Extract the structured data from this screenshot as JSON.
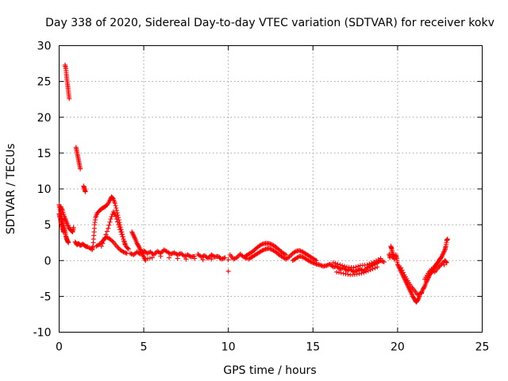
{
  "chart_data": {
    "type": "scatter",
    "title": "Day 338 of 2020, Sidereal Day-to-day VTEC variation (SDTVAR) for receiver kokv",
    "xlabel": "GPS time / hours",
    "ylabel": "SDTVAR / TECUs",
    "xlim": [
      0,
      25
    ],
    "ylim": [
      -10,
      30
    ],
    "xticks": [
      0,
      5,
      10,
      15,
      20,
      25
    ],
    "yticks": [
      -10,
      -5,
      0,
      5,
      10,
      15,
      20,
      25,
      30
    ],
    "grid": true,
    "marker": "+",
    "color": "#ff0000",
    "series": [
      {
        "name": "SDTVAR",
        "points": [
          [
            0.0,
            7.8
          ],
          [
            0.05,
            7.2
          ],
          [
            0.1,
            6.6
          ],
          [
            0.15,
            6.0
          ],
          [
            0.2,
            5.5
          ],
          [
            0.25,
            5.0
          ],
          [
            0.3,
            4.5
          ],
          [
            0.35,
            4.0
          ],
          [
            0.4,
            3.4
          ],
          [
            0.45,
            3.0
          ],
          [
            0.5,
            2.7
          ],
          [
            0.55,
            2.5
          ],
          [
            0.0,
            6.5
          ],
          [
            0.05,
            6.0
          ],
          [
            0.1,
            5.4
          ],
          [
            0.15,
            4.9
          ],
          [
            0.2,
            4.4
          ],
          [
            0.25,
            4.0
          ],
          [
            0.1,
            7.5
          ],
          [
            0.2,
            7.0
          ],
          [
            0.3,
            6.2
          ],
          [
            0.4,
            5.6
          ],
          [
            0.5,
            5.0
          ],
          [
            0.6,
            4.5
          ],
          [
            0.7,
            4.2
          ],
          [
            0.8,
            4.0
          ],
          [
            0.85,
            4.6
          ],
          [
            0.35,
            27.3
          ],
          [
            0.4,
            26.8
          ],
          [
            0.43,
            26.0
          ],
          [
            0.46,
            25.3
          ],
          [
            0.5,
            24.6
          ],
          [
            0.53,
            24.0
          ],
          [
            0.56,
            23.3
          ],
          [
            0.6,
            22.6
          ],
          [
            1.0,
            15.8
          ],
          [
            1.05,
            15.2
          ],
          [
            1.1,
            14.6
          ],
          [
            1.15,
            14.0
          ],
          [
            1.2,
            13.4
          ],
          [
            1.25,
            12.8
          ],
          [
            1.45,
            10.4
          ],
          [
            1.5,
            10.0
          ],
          [
            1.55,
            9.6
          ],
          [
            0.95,
            2.6
          ],
          [
            1.05,
            2.2
          ],
          [
            1.15,
            2.4
          ],
          [
            1.25,
            2.1
          ],
          [
            1.4,
            2.3
          ],
          [
            1.55,
            2.0
          ],
          [
            1.7,
            1.9
          ],
          [
            1.95,
            1.5
          ],
          [
            2.0,
            2.0
          ],
          [
            2.05,
            3.5
          ],
          [
            2.1,
            5.0
          ],
          [
            2.15,
            6.0
          ],
          [
            2.25,
            6.6
          ],
          [
            2.4,
            7.0
          ],
          [
            2.55,
            7.3
          ],
          [
            2.7,
            7.5
          ],
          [
            2.85,
            7.8
          ],
          [
            3.0,
            8.4
          ],
          [
            3.1,
            8.9
          ],
          [
            3.2,
            8.6
          ],
          [
            3.3,
            8.0
          ],
          [
            3.4,
            7.0
          ],
          [
            3.5,
            6.0
          ],
          [
            3.6,
            5.0
          ],
          [
            3.7,
            4.0
          ],
          [
            3.8,
            3.0
          ],
          [
            3.9,
            2.2
          ],
          [
            2.2,
            2.0
          ],
          [
            2.4,
            2.3
          ],
          [
            2.6,
            2.8
          ],
          [
            2.8,
            3.3
          ],
          [
            3.0,
            3.0
          ],
          [
            3.2,
            2.6
          ],
          [
            3.4,
            2.0
          ],
          [
            3.6,
            1.5
          ],
          [
            3.8,
            1.2
          ],
          [
            4.0,
            1.0
          ],
          [
            2.5,
            2.0
          ],
          [
            2.7,
            3.2
          ],
          [
            2.9,
            4.5
          ],
          [
            3.05,
            5.8
          ],
          [
            3.2,
            6.8
          ],
          [
            3.35,
            6.2
          ],
          [
            3.5,
            5.0
          ],
          [
            3.65,
            4.0
          ],
          [
            3.8,
            3.0
          ],
          [
            3.95,
            2.0
          ],
          [
            4.1,
            1.6
          ],
          [
            4.3,
            4.0
          ],
          [
            4.4,
            3.5
          ],
          [
            4.5,
            3.0
          ],
          [
            4.6,
            2.4
          ],
          [
            4.7,
            2.0
          ],
          [
            4.8,
            1.5
          ],
          [
            4.9,
            1.0
          ],
          [
            5.0,
            0.5
          ],
          [
            5.1,
            0.0
          ],
          [
            4.2,
            1.0
          ],
          [
            4.4,
            0.8
          ],
          [
            4.6,
            1.2
          ],
          [
            4.8,
            0.9
          ],
          [
            5.0,
            1.4
          ],
          [
            5.2,
            1.0
          ],
          [
            5.4,
            1.2
          ],
          [
            5.6,
            0.8
          ],
          [
            5.8,
            1.3
          ],
          [
            6.0,
            1.0
          ],
          [
            6.2,
            1.5
          ],
          [
            6.4,
            1.2
          ],
          [
            6.6,
            0.9
          ],
          [
            6.8,
            1.1
          ],
          [
            7.0,
            0.8
          ],
          [
            7.2,
            1.0
          ],
          [
            7.4,
            0.6
          ],
          [
            7.6,
            0.8
          ],
          [
            7.8,
            0.5
          ],
          [
            8.0,
            0.6
          ],
          [
            5.1,
            0.2
          ],
          [
            5.5,
            0.4
          ],
          [
            6.0,
            0.6
          ],
          [
            6.5,
            0.4
          ],
          [
            7.0,
            0.3
          ],
          [
            7.5,
            0.2
          ],
          [
            8.0,
            0.3
          ],
          [
            8.5,
            0.1
          ],
          [
            9.0,
            0.2
          ],
          [
            9.5,
            0.3
          ],
          [
            10.0,
            0.1
          ],
          [
            8.2,
            0.9
          ],
          [
            8.4,
            0.5
          ],
          [
            8.6,
            0.7
          ],
          [
            8.8,
            0.3
          ],
          [
            9.0,
            0.8
          ],
          [
            9.2,
            0.5
          ],
          [
            9.4,
            0.6
          ],
          [
            9.6,
            0.2
          ],
          [
            9.8,
            0.4
          ],
          [
            10.0,
            -1.5
          ],
          [
            10.1,
            0.8
          ],
          [
            10.3,
            0.2
          ],
          [
            10.5,
            0.4
          ],
          [
            10.7,
            0.9
          ],
          [
            10.9,
            0.5
          ],
          [
            11.1,
            0.3
          ],
          [
            11.0,
            0.6
          ],
          [
            11.2,
            0.9
          ],
          [
            11.4,
            1.2
          ],
          [
            11.6,
            1.6
          ],
          [
            11.8,
            2.0
          ],
          [
            12.0,
            2.3
          ],
          [
            12.2,
            2.4
          ],
          [
            12.4,
            2.4
          ],
          [
            12.6,
            2.2
          ],
          [
            12.8,
            1.9
          ],
          [
            13.0,
            1.5
          ],
          [
            13.2,
            1.1
          ],
          [
            13.4,
            0.8
          ],
          [
            11.2,
            0.2
          ],
          [
            11.4,
            0.5
          ],
          [
            11.6,
            0.8
          ],
          [
            11.8,
            1.1
          ],
          [
            12.0,
            1.4
          ],
          [
            12.2,
            1.6
          ],
          [
            12.4,
            1.7
          ],
          [
            12.6,
            1.5
          ],
          [
            12.8,
            1.2
          ],
          [
            13.0,
            0.8
          ],
          [
            13.2,
            0.5
          ],
          [
            13.4,
            0.2
          ],
          [
            13.6,
            0.5
          ],
          [
            13.8,
            1.0
          ],
          [
            14.0,
            1.3
          ],
          [
            14.2,
            1.4
          ],
          [
            14.4,
            1.2
          ],
          [
            14.6,
            0.9
          ],
          [
            14.8,
            0.6
          ],
          [
            15.0,
            0.3
          ],
          [
            15.2,
            0.0
          ],
          [
            13.8,
            0.0
          ],
          [
            14.0,
            0.3
          ],
          [
            14.2,
            0.6
          ],
          [
            14.4,
            0.5
          ],
          [
            14.6,
            0.2
          ],
          [
            14.8,
            -0.1
          ],
          [
            15.0,
            -0.3
          ],
          [
            15.2,
            -0.5
          ],
          [
            15.4,
            -0.6
          ],
          [
            15.6,
            -0.8
          ],
          [
            15.8,
            -0.7
          ],
          [
            16.0,
            -0.5
          ],
          [
            16.2,
            -0.9
          ],
          [
            16.4,
            -0.8
          ],
          [
            16.6,
            -1.2
          ],
          [
            16.8,
            -1.0
          ],
          [
            17.0,
            -1.4
          ],
          [
            17.2,
            -1.2
          ],
          [
            17.4,
            -1.6
          ],
          [
            17.6,
            -1.4
          ],
          [
            17.8,
            -1.2
          ],
          [
            18.0,
            -1.5
          ],
          [
            18.2,
            -1.0
          ],
          [
            18.4,
            -0.8
          ],
          [
            18.6,
            -0.5
          ],
          [
            18.8,
            -0.3
          ],
          [
            19.0,
            0.0
          ],
          [
            19.2,
            -0.2
          ],
          [
            16.2,
            -0.3
          ],
          [
            16.6,
            -0.6
          ],
          [
            17.0,
            -0.9
          ],
          [
            17.4,
            -1.0
          ],
          [
            17.8,
            -0.7
          ],
          [
            18.2,
            -0.6
          ],
          [
            18.6,
            -0.2
          ],
          [
            19.0,
            0.3
          ],
          [
            16.4,
            -1.6
          ],
          [
            16.8,
            -1.8
          ],
          [
            17.2,
            -2.0
          ],
          [
            17.6,
            -1.9
          ],
          [
            18.0,
            -1.7
          ],
          [
            18.4,
            -1.3
          ],
          [
            18.8,
            -0.9
          ],
          [
            19.6,
            2.0
          ],
          [
            19.65,
            1.6
          ],
          [
            19.7,
            1.0
          ],
          [
            19.75,
            0.6
          ],
          [
            19.8,
            0.2
          ],
          [
            19.5,
            0.9
          ],
          [
            19.55,
            0.4
          ],
          [
            19.9,
            0.8
          ],
          [
            19.95,
            0.3
          ],
          [
            20.0,
            -0.5
          ],
          [
            20.1,
            -1.0
          ],
          [
            20.2,
            -1.5
          ],
          [
            20.3,
            -2.0
          ],
          [
            20.4,
            -2.5
          ],
          [
            20.5,
            -3.0
          ],
          [
            20.6,
            -3.5
          ],
          [
            20.7,
            -4.0
          ],
          [
            20.8,
            -4.5
          ],
          [
            20.9,
            -5.0
          ],
          [
            21.0,
            -5.4
          ],
          [
            21.1,
            -5.8
          ],
          [
            21.2,
            -5.5
          ],
          [
            21.3,
            -5.0
          ],
          [
            20.2,
            -1.0
          ],
          [
            20.4,
            -2.0
          ],
          [
            20.6,
            -2.8
          ],
          [
            20.8,
            -3.6
          ],
          [
            21.0,
            -4.2
          ],
          [
            21.2,
            -4.8
          ],
          [
            21.4,
            -4.5
          ],
          [
            21.4,
            -4.6
          ],
          [
            21.5,
            -4.0
          ],
          [
            21.6,
            -3.6
          ],
          [
            21.7,
            -3.0
          ],
          [
            21.8,
            -2.5
          ],
          [
            21.9,
            -2.0
          ],
          [
            22.0,
            -1.6
          ],
          [
            22.1,
            -1.2
          ],
          [
            22.2,
            -0.8
          ],
          [
            22.3,
            -0.5
          ],
          [
            22.4,
            -0.2
          ],
          [
            22.5,
            0.2
          ],
          [
            22.6,
            0.5
          ],
          [
            22.7,
            1.0
          ],
          [
            22.8,
            1.5
          ],
          [
            22.85,
            2.0
          ],
          [
            22.9,
            2.8
          ],
          [
            22.95,
            3.0
          ],
          [
            21.6,
            -2.6
          ],
          [
            21.8,
            -1.8
          ],
          [
            22.0,
            -1.2
          ],
          [
            22.2,
            -1.6
          ],
          [
            22.4,
            -1.0
          ],
          [
            22.6,
            -0.5
          ],
          [
            22.8,
            0.0
          ],
          [
            22.9,
            -0.3
          ],
          [
            22.75,
            -0.6
          ]
        ]
      }
    ]
  }
}
